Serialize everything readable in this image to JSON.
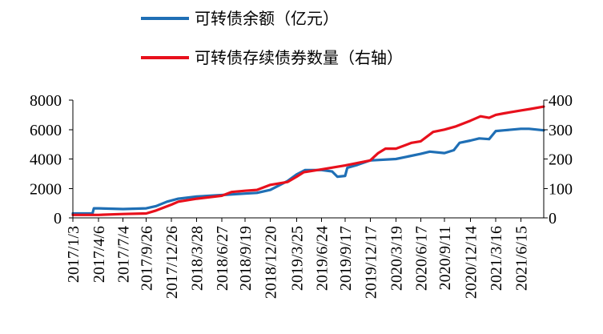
{
  "chart_data": {
    "type": "line",
    "title": "",
    "legend_position": "top",
    "grid": false,
    "y_left": {
      "range": [
        0,
        8000
      ],
      "ticks": [
        "0",
        "2000",
        "4000",
        "6000",
        "8000"
      ]
    },
    "y_right": {
      "range": [
        0,
        400
      ],
      "ticks": [
        "0",
        "100",
        "200",
        "300",
        "400"
      ]
    },
    "x_range": [
      "2017-01-03",
      "2021-09-06"
    ],
    "x_tick_labels": [
      "2017/1/3",
      "2017/4/6",
      "2017/7/4",
      "2017/9/26",
      "2017/12/26",
      "2018/3/28",
      "2018/6/27",
      "2018/9/19",
      "2018/12/20",
      "2019/3/25",
      "2019/6/24",
      "2019/9/17",
      "2019/12/17",
      "2020/3/19",
      "2020/6/17",
      "2020/9/11",
      "2020/12/14",
      "2021/3/16",
      "2021/6/15"
    ],
    "series": [
      {
        "name": "可转债余额（亿元）",
        "axis": "left",
        "color": "#1f6fb5",
        "points": [
          [
            "2017-01-03",
            300
          ],
          [
            "2017-03-15",
            300
          ],
          [
            "2017-03-20",
            650
          ],
          [
            "2017-04-06",
            650
          ],
          [
            "2017-07-04",
            600
          ],
          [
            "2017-09-26",
            650
          ],
          [
            "2017-11-01",
            800
          ],
          [
            "2017-12-10",
            1100
          ],
          [
            "2018-01-20",
            1300
          ],
          [
            "2018-03-28",
            1450
          ],
          [
            "2018-06-27",
            1550
          ],
          [
            "2018-09-19",
            1650
          ],
          [
            "2018-11-01",
            1700
          ],
          [
            "2018-12-20",
            1900
          ],
          [
            "2019-01-20",
            2200
          ],
          [
            "2019-02-20",
            2500
          ],
          [
            "2019-03-25",
            2950
          ],
          [
            "2019-04-25",
            3250
          ],
          [
            "2019-06-24",
            3250
          ],
          [
            "2019-08-01",
            3150
          ],
          [
            "2019-08-20",
            2800
          ],
          [
            "2019-09-17",
            2850
          ],
          [
            "2019-09-25",
            3400
          ],
          [
            "2019-11-01",
            3600
          ],
          [
            "2019-12-17",
            3900
          ],
          [
            "2020-03-19",
            4000
          ],
          [
            "2020-06-17",
            4350
          ],
          [
            "2020-07-20",
            4500
          ],
          [
            "2020-09-11",
            4400
          ],
          [
            "2020-10-15",
            4600
          ],
          [
            "2020-11-05",
            5100
          ],
          [
            "2020-12-14",
            5250
          ],
          [
            "2021-01-15",
            5400
          ],
          [
            "2021-02-20",
            5350
          ],
          [
            "2021-03-16",
            5900
          ],
          [
            "2021-04-15",
            5950
          ],
          [
            "2021-06-15",
            6050
          ],
          [
            "2021-07-15",
            6050
          ],
          [
            "2021-09-06",
            5950
          ]
        ]
      },
      {
        "name": "可转债存续债券数量（右轴）",
        "axis": "right",
        "color": "#e8101c",
        "points": [
          [
            "2017-01-03",
            10
          ],
          [
            "2017-04-06",
            10
          ],
          [
            "2017-07-04",
            13
          ],
          [
            "2017-09-26",
            15
          ],
          [
            "2017-11-01",
            25
          ],
          [
            "2017-12-26",
            45
          ],
          [
            "2018-01-20",
            55
          ],
          [
            "2018-03-28",
            65
          ],
          [
            "2018-06-27",
            75
          ],
          [
            "2018-08-01",
            88
          ],
          [
            "2018-09-19",
            92
          ],
          [
            "2018-11-01",
            95
          ],
          [
            "2018-12-20",
            112
          ],
          [
            "2019-02-20",
            122
          ],
          [
            "2019-03-25",
            140
          ],
          [
            "2019-04-20",
            155
          ],
          [
            "2019-06-24",
            165
          ],
          [
            "2019-09-17",
            178
          ],
          [
            "2019-12-17",
            195
          ],
          [
            "2020-01-15",
            220
          ],
          [
            "2020-02-10",
            235
          ],
          [
            "2020-03-19",
            235
          ],
          [
            "2020-05-15",
            255
          ],
          [
            "2020-06-17",
            260
          ],
          [
            "2020-08-01",
            292
          ],
          [
            "2020-09-11",
            300
          ],
          [
            "2020-10-20",
            310
          ],
          [
            "2020-12-14",
            330
          ],
          [
            "2021-01-20",
            345
          ],
          [
            "2021-02-20",
            340
          ],
          [
            "2021-03-16",
            350
          ],
          [
            "2021-04-15",
            355
          ],
          [
            "2021-06-15",
            365
          ],
          [
            "2021-07-20",
            370
          ],
          [
            "2021-09-06",
            378
          ]
        ]
      }
    ]
  }
}
